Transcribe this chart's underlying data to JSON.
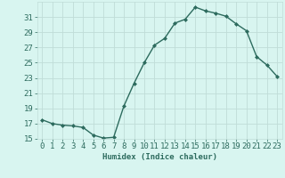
{
  "x": [
    0,
    1,
    2,
    3,
    4,
    5,
    6,
    7,
    8,
    9,
    10,
    11,
    12,
    13,
    14,
    15,
    16,
    17,
    18,
    19,
    20,
    21,
    22,
    23
  ],
  "y": [
    17.5,
    17.0,
    16.8,
    16.7,
    16.5,
    15.5,
    15.1,
    15.2,
    19.3,
    22.3,
    25.0,
    27.3,
    28.2,
    30.2,
    30.7,
    32.3,
    31.8,
    31.5,
    31.1,
    30.1,
    29.2,
    25.8,
    24.7,
    23.2
  ],
  "line_color": "#2d6b5e",
  "marker": "D",
  "marker_size": 2.0,
  "bg_color": "#d8f5f0",
  "grid_color": "#c0ddd8",
  "xlabel": "Humidex (Indice chaleur)",
  "ylim": [
    15,
    33
  ],
  "xlim": [
    -0.5,
    23.5
  ],
  "yticks": [
    15,
    17,
    19,
    21,
    23,
    25,
    27,
    29,
    31
  ],
  "xticks": [
    0,
    1,
    2,
    3,
    4,
    5,
    6,
    7,
    8,
    9,
    10,
    11,
    12,
    13,
    14,
    15,
    16,
    17,
    18,
    19,
    20,
    21,
    22,
    23
  ],
  "xlabel_fontsize": 6.5,
  "tick_fontsize": 6.5,
  "line_width": 1.0,
  "text_color": "#2d6b5e"
}
